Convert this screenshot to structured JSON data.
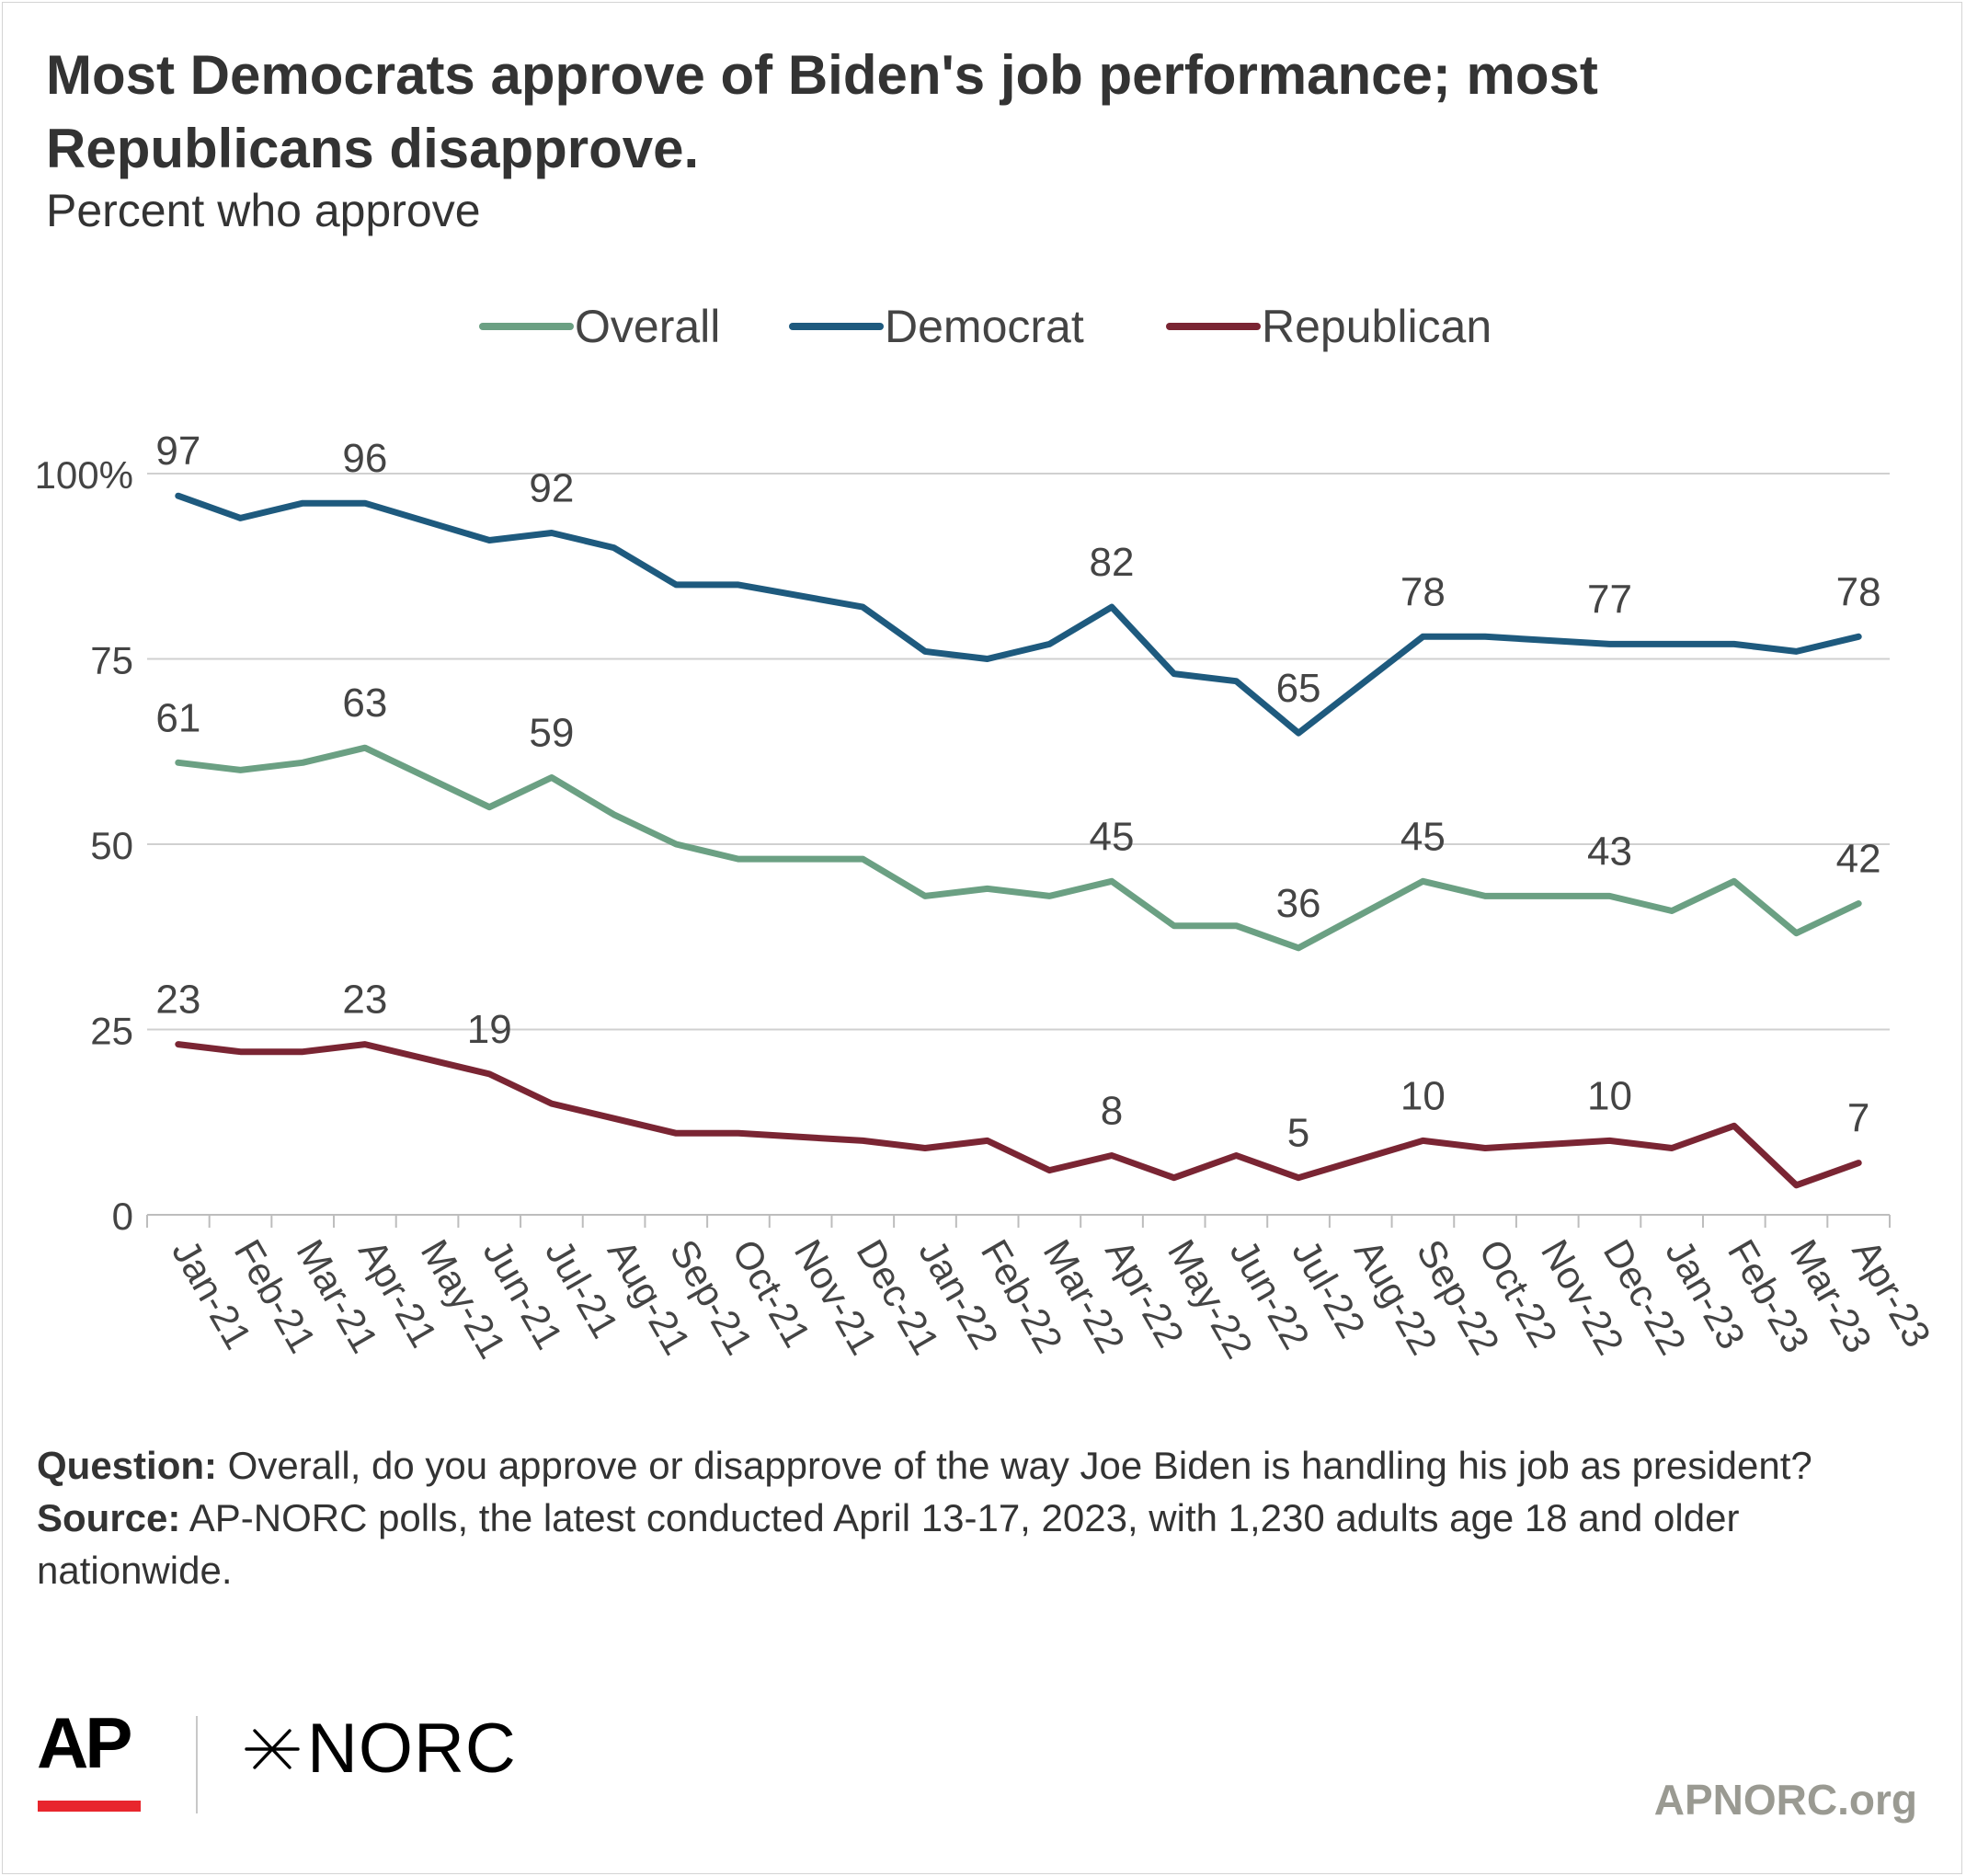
{
  "header": {
    "title": "Most Democrats approve of Biden's job performance; most Republicans disapprove.",
    "subtitle": "Percent who approve"
  },
  "chart_data": {
    "type": "line",
    "title": "Most Democrats approve of Biden's job performance; most Republicans disapprove.",
    "subtitle": "Percent who approve",
    "categories": [
      "Jan-21",
      "Feb-21",
      "Mar-21",
      "Apr-21",
      "May-21",
      "Jun-21",
      "Jul-21",
      "Aug-21",
      "Sep-21",
      "Oct-21",
      "Nov-21",
      "Dec-21",
      "Jan-22",
      "Feb-22",
      "Mar-22",
      "Apr-22",
      "May-22",
      "Jun-22",
      "Jul-22",
      "Aug-22",
      "Sep-22",
      "Oct-22",
      "Nov-22",
      "Dec-22",
      "Jan-23",
      "Feb-23",
      "Mar-23",
      "Apr-23"
    ],
    "series": [
      {
        "name": "Overall",
        "color": "#6ba083",
        "values": [
          61,
          60,
          61,
          63,
          null,
          55,
          59,
          54,
          50,
          48,
          48,
          48,
          43,
          44,
          43,
          45,
          39,
          39,
          36,
          null,
          45,
          43,
          43,
          43,
          41,
          45,
          38,
          42
        ]
      },
      {
        "name": "Democrat",
        "color": "#1e5a7e",
        "values": [
          97,
          94,
          96,
          96,
          null,
          91,
          92,
          90,
          85,
          85,
          null,
          82,
          76,
          75,
          77,
          82,
          73,
          72,
          65,
          null,
          78,
          78,
          null,
          77,
          77,
          77,
          76,
          78
        ]
      },
      {
        "name": "Republican",
        "color": "#7a2533",
        "values": [
          23,
          22,
          22,
          23,
          null,
          19,
          15,
          13,
          11,
          11,
          null,
          10,
          9,
          10,
          6,
          8,
          5,
          8,
          5,
          null,
          10,
          9,
          null,
          10,
          9,
          12,
          4,
          7
        ]
      }
    ],
    "data_labels": [
      {
        "series": "Democrat",
        "category": "Jan-21",
        "text": "97"
      },
      {
        "series": "Democrat",
        "category": "Apr-21",
        "text": "96"
      },
      {
        "series": "Democrat",
        "category": "Jul-21",
        "text": "92"
      },
      {
        "series": "Democrat",
        "category": "Apr-22",
        "text": "82"
      },
      {
        "series": "Democrat",
        "category": "Jul-22",
        "text": "65"
      },
      {
        "series": "Democrat",
        "category": "Sep-22",
        "text": "78"
      },
      {
        "series": "Democrat",
        "category": "Dec-22",
        "text": "77"
      },
      {
        "series": "Democrat",
        "category": "Apr-23",
        "text": "78"
      },
      {
        "series": "Overall",
        "category": "Jan-21",
        "text": "61"
      },
      {
        "series": "Overall",
        "category": "Apr-21",
        "text": "63"
      },
      {
        "series": "Overall",
        "category": "Jul-21",
        "text": "59"
      },
      {
        "series": "Overall",
        "category": "Apr-22",
        "text": "45"
      },
      {
        "series": "Overall",
        "category": "Jul-22",
        "text": "36"
      },
      {
        "series": "Overall",
        "category": "Sep-22",
        "text": "45"
      },
      {
        "series": "Overall",
        "category": "Dec-22",
        "text": "43"
      },
      {
        "series": "Overall",
        "category": "Apr-23",
        "text": "42"
      },
      {
        "series": "Republican",
        "category": "Jan-21",
        "text": "23"
      },
      {
        "series": "Republican",
        "category": "Apr-21",
        "text": "23"
      },
      {
        "series": "Republican",
        "category": "Jun-21",
        "text": "19"
      },
      {
        "series": "Republican",
        "category": "Apr-22",
        "text": "8"
      },
      {
        "series": "Republican",
        "category": "Jul-22",
        "text": "5"
      },
      {
        "series": "Republican",
        "category": "Sep-22",
        "text": "10"
      },
      {
        "series": "Republican",
        "category": "Dec-22",
        "text": "10"
      },
      {
        "series": "Republican",
        "category": "Apr-23",
        "text": "7"
      }
    ],
    "y_ticks": [
      0,
      25,
      50,
      75,
      100
    ],
    "y_tick_labels": [
      "0",
      "25",
      "50",
      "75",
      "100%"
    ],
    "ylim": [
      0,
      100
    ],
    "grid": true,
    "legend": "top-center",
    "xlabel": "",
    "ylabel": ""
  },
  "footnote": {
    "question_label": "Question:",
    "question_text": " Overall, do you approve or disapprove of the way Joe Biden is handling his job as president?",
    "source_label": "Source:",
    "source_text": " AP-NORC polls, the latest conducted April 13-17, 2023, with 1,230 adults age 18 and older nationwide."
  },
  "branding": {
    "ap_logo": "AP",
    "ap_bar_color": "#e8262d",
    "norc_logo": "NORC",
    "site": "APNORC.org"
  }
}
